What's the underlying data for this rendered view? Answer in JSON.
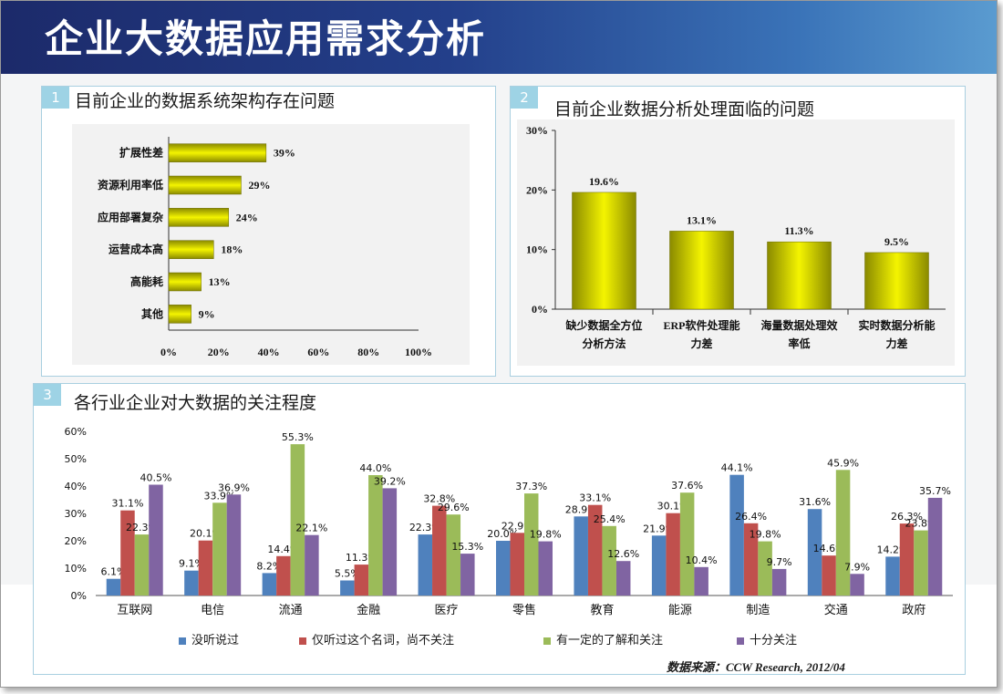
{
  "title": "企业大数据应用需求分析",
  "colors": {
    "banner": "#1f3275",
    "bar_gold": "#c8c800",
    "blue": "#4f81bd",
    "red": "#c0504d",
    "green": "#9bbb59",
    "purple": "#8064a2"
  },
  "panels": [
    {
      "number": "1",
      "title": "目前企业的数据系统架构存在问题"
    },
    {
      "number": "2",
      "title": "目前企业数据分析处理面临的问题"
    },
    {
      "number": "3",
      "title": "各行业企业对大数据的关注程度"
    }
  ],
  "source": "数据来源：CCW Research, 2012/04",
  "chart_data": [
    {
      "type": "bar",
      "orientation": "horizontal",
      "categories": [
        "扩展性差",
        "资源利用率低",
        "应用部署复杂",
        "运营成本高",
        "高能耗",
        "其他"
      ],
      "values": [
        39,
        29,
        24,
        18,
        13,
        9
      ],
      "value_labels": [
        "39%",
        "29%",
        "24%",
        "18%",
        "13%",
        "9%"
      ],
      "xlim": [
        0,
        100
      ],
      "ticks": [
        0,
        20,
        40,
        60,
        80,
        100
      ],
      "tick_labels": [
        "0%",
        "20%",
        "40%",
        "60%",
        "80%",
        "100%"
      ]
    },
    {
      "type": "bar",
      "categories": [
        [
          "缺少数据全方位",
          "分析方法"
        ],
        [
          "ERP软件处理能",
          "力差"
        ],
        [
          "海量数据处理效",
          "率低"
        ],
        [
          "实时数据分析能",
          "力差"
        ]
      ],
      "values": [
        19.6,
        13.1,
        11.3,
        9.5
      ],
      "value_labels": [
        "19.6%",
        "13.1%",
        "11.3%",
        "9.5%"
      ],
      "ylim": [
        0,
        30
      ],
      "ticks": [
        0,
        10,
        20,
        30
      ],
      "tick_labels": [
        "0%",
        "10%",
        "20%",
        "30%"
      ]
    },
    {
      "type": "bar",
      "categories": [
        "互联网",
        "电信",
        "流通",
        "金融",
        "医疗",
        "零售",
        "教育",
        "能源",
        "制造",
        "交通",
        "政府"
      ],
      "series": [
        {
          "name": "没听说过",
          "values": [
            6.1,
            9.1,
            8.2,
            5.5,
            22.3,
            20.0,
            28.9,
            21.9,
            44.1,
            31.6,
            14.2
          ],
          "labels": [
            "6.1%",
            "9.1%",
            "8.2%",
            "5.5%",
            "22.3%",
            "20.0%",
            "28.9%",
            "21.9%",
            "44.1%",
            "31.6%",
            "14.2%"
          ]
        },
        {
          "name": "仅听过这个名词，尚不关注",
          "values": [
            31.1,
            20.1,
            14.4,
            11.3,
            32.8,
            22.9,
            33.1,
            30.1,
            26.4,
            14.6,
            26.3
          ],
          "labels": [
            "31.1%",
            "20.1%",
            "14.4%",
            "11.3%",
            "32.8%",
            "22.9%",
            "33.1%",
            "30.1%",
            "26.4%",
            "14.6%",
            "26.3%"
          ]
        },
        {
          "name": "有一定的了解和关注",
          "values": [
            22.3,
            33.9,
            55.3,
            44.0,
            29.6,
            37.3,
            25.4,
            37.6,
            19.8,
            45.9,
            23.8
          ],
          "labels": [
            "22.3%",
            "33.9%",
            "55.3%",
            "44.0%",
            "29.6%",
            "37.3%",
            "25.4%",
            "37.6%",
            "19.8%",
            "45.9%",
            "23.8%"
          ]
        },
        {
          "name": "十分关注",
          "values": [
            40.5,
            36.9,
            22.1,
            39.2,
            15.3,
            19.8,
            12.6,
            10.4,
            9.7,
            7.9,
            35.7
          ],
          "labels": [
            "40.5%",
            "36.9%",
            "22.1%",
            "39.2%",
            "15.3%",
            "19.8%",
            "12.6%",
            "10.4%",
            "9.7%",
            "7.9%",
            "35.7%"
          ]
        }
      ],
      "ylim": [
        0,
        60
      ],
      "ticks": [
        0,
        10,
        20,
        30,
        40,
        50,
        60
      ],
      "tick_labels": [
        "0%",
        "10%",
        "20%",
        "30%",
        "40%",
        "50%",
        "60%"
      ],
      "legend_position": "bottom"
    }
  ]
}
